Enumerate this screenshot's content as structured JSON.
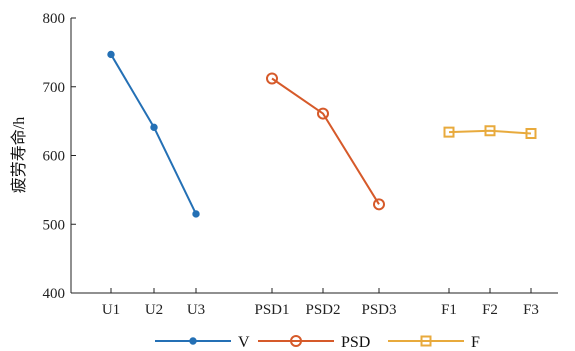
{
  "chart_data": {
    "type": "line",
    "title": "",
    "xlabel": "",
    "ylabel": "疲劳寿命/h",
    "ylim": [
      400,
      800
    ],
    "yticks": [
      400,
      500,
      600,
      700,
      800
    ],
    "categories": [
      "U1",
      "U2",
      "U3",
      "PSD1",
      "PSD2",
      "PSD3",
      "F1",
      "F2",
      "F3"
    ],
    "grid": false,
    "legend_position": "bottom",
    "series": [
      {
        "name": "V",
        "marker": "filled-circle",
        "color": "#2470B5",
        "x": [
          "U1",
          "U2",
          "U3"
        ],
        "values": [
          747,
          641,
          515
        ]
      },
      {
        "name": "PSD",
        "marker": "open-circle",
        "color": "#D65A2A",
        "x": [
          "PSD1",
          "PSD2",
          "PSD3"
        ],
        "values": [
          712,
          661,
          529
        ]
      },
      {
        "name": "F",
        "marker": "open-square",
        "color": "#E8AA3C",
        "x": [
          "F1",
          "F2",
          "F3"
        ],
        "values": [
          634,
          636,
          632
        ]
      }
    ]
  }
}
